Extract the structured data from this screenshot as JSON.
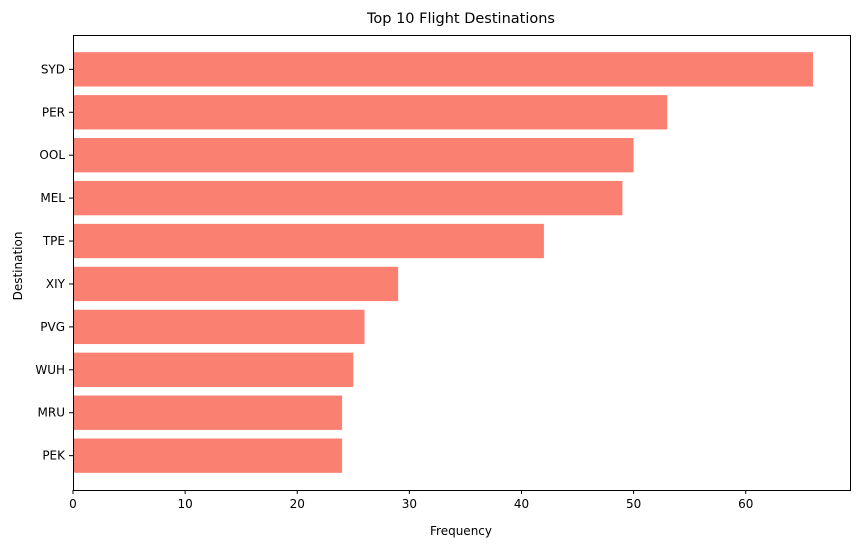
{
  "chart_data": {
    "type": "bar",
    "orientation": "horizontal",
    "title": "Top 10 Flight Destinations",
    "xlabel": "Frequency",
    "ylabel": "Destination",
    "categories": [
      "SYD",
      "PER",
      "OOL",
      "MEL",
      "TPE",
      "XIY",
      "PVG",
      "WUH",
      "MRU",
      "PEK"
    ],
    "values": [
      66,
      53,
      50,
      49,
      42,
      29,
      26,
      25,
      24,
      24
    ],
    "xlim": [
      0,
      69.3
    ],
    "xticks": [
      0,
      10,
      20,
      30,
      40,
      50,
      60
    ],
    "grid": false,
    "bar_color": "#fa8072"
  }
}
